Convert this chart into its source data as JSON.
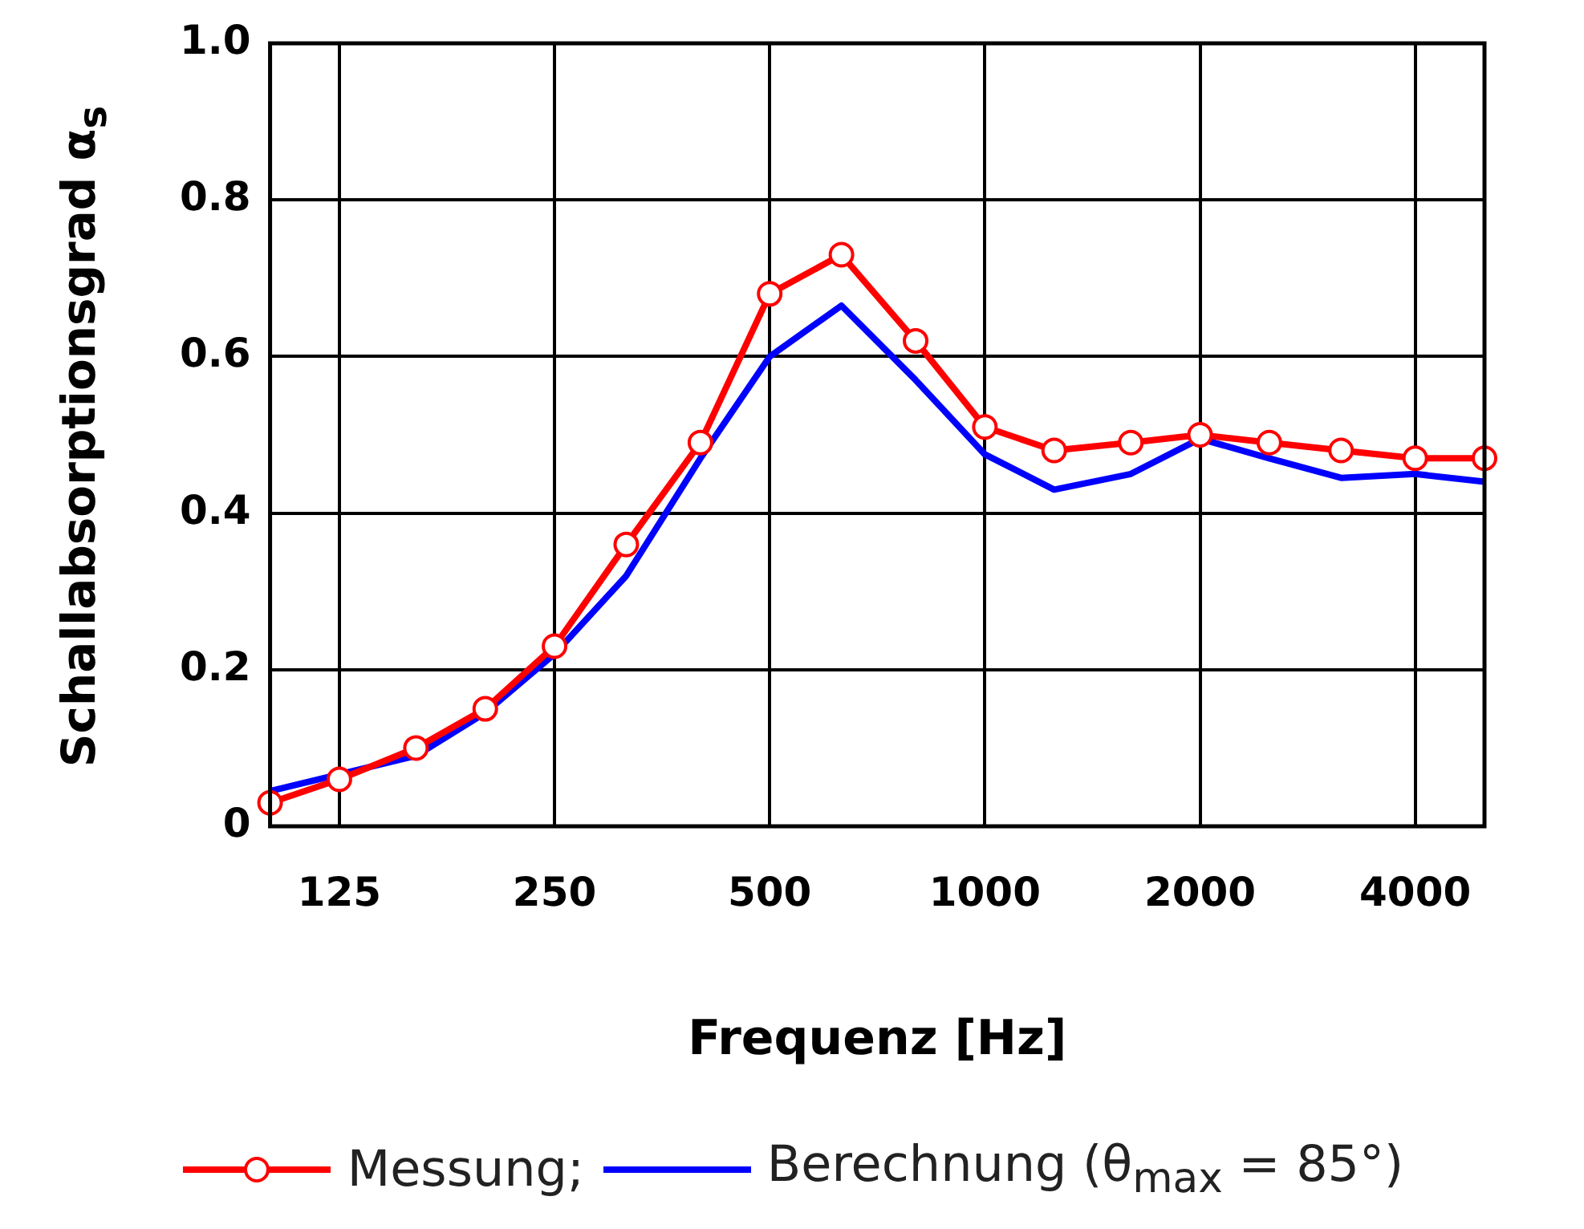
{
  "chart_data": {
    "type": "line",
    "xlabel": "Frequenz [Hz]",
    "ylabel": "Schallabsorptionsgrad α$_{s}$",
    "x": [
      100,
      125,
      160,
      200,
      250,
      315,
      400,
      500,
      630,
      800,
      1000,
      1250,
      1600,
      2000,
      2500,
      3150,
      4000,
      5000
    ],
    "series": [
      {
        "name": "Messung;",
        "color": "#ff0000",
        "marker": "circle",
        "values": [
          0.03,
          0.06,
          0.1,
          0.15,
          0.23,
          0.36,
          0.49,
          0.68,
          0.73,
          0.62,
          0.51,
          0.48,
          0.49,
          0.5,
          0.49,
          0.48,
          0.47,
          0.47
        ]
      },
      {
        "name": "Berechnung (θ$_{max}$ = 85°)",
        "color": "#0000ff",
        "marker": "none",
        "values": [
          0.045,
          null,
          0.09,
          0.145,
          0.22,
          0.32,
          0.47,
          0.6,
          0.665,
          0.57,
          0.475,
          0.43,
          0.45,
          0.495,
          0.47,
          0.445,
          0.45,
          0.44
        ]
      }
    ],
    "log": "x",
    "xlim": [
      100,
      5000
    ],
    "xticks": [
      125,
      250,
      500,
      1000,
      2000,
      4000
    ],
    "ylim": [
      0,
      1
    ],
    "yticks": [
      0,
      0.2,
      0.4,
      0.6,
      0.8,
      {
        "value": 1,
        "label": "1.0"
      }
    ],
    "grid": true,
    "legend": "bottom"
  }
}
